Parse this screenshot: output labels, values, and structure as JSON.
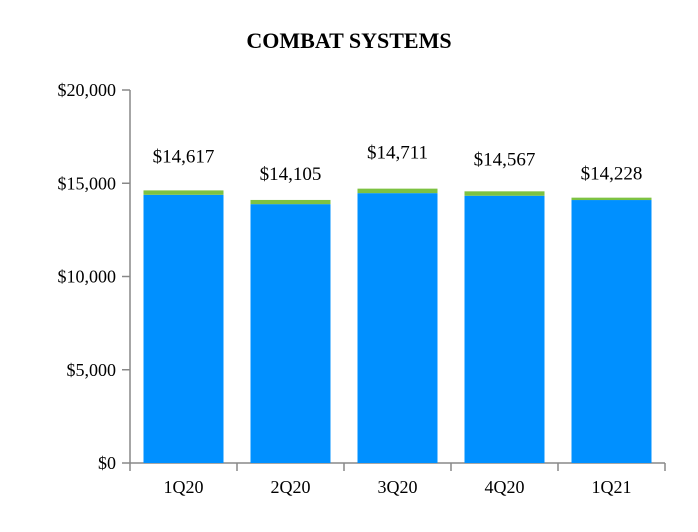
{
  "chart_data": {
    "type": "bar",
    "stacked": true,
    "title": "COMBAT SYSTEMS",
    "xlabel": "",
    "ylabel": "",
    "ylim": [
      0,
      20000
    ],
    "yticks": [
      0,
      5000,
      10000,
      15000,
      20000
    ],
    "ytick_labels": [
      "$0",
      "$5,000",
      "$10,000",
      "$15,000",
      "$20,000"
    ],
    "grid": false,
    "legend": "none",
    "categories": [
      "1Q20",
      "2Q20",
      "3Q20",
      "4Q20",
      "1Q21"
    ],
    "totals": [
      14617,
      14105,
      14711,
      14567,
      14228
    ],
    "total_labels": [
      "$14,617",
      "$14,105",
      "$14,711",
      "$14,567",
      "$14,228"
    ],
    "series": [
      {
        "values": [
          14380,
          13880,
          14470,
          14330,
          14100
        ],
        "color": "#0090FF"
      },
      {
        "values": [
          237,
          225,
          241,
          237,
          128
        ],
        "color": "#7DC242"
      }
    ]
  }
}
